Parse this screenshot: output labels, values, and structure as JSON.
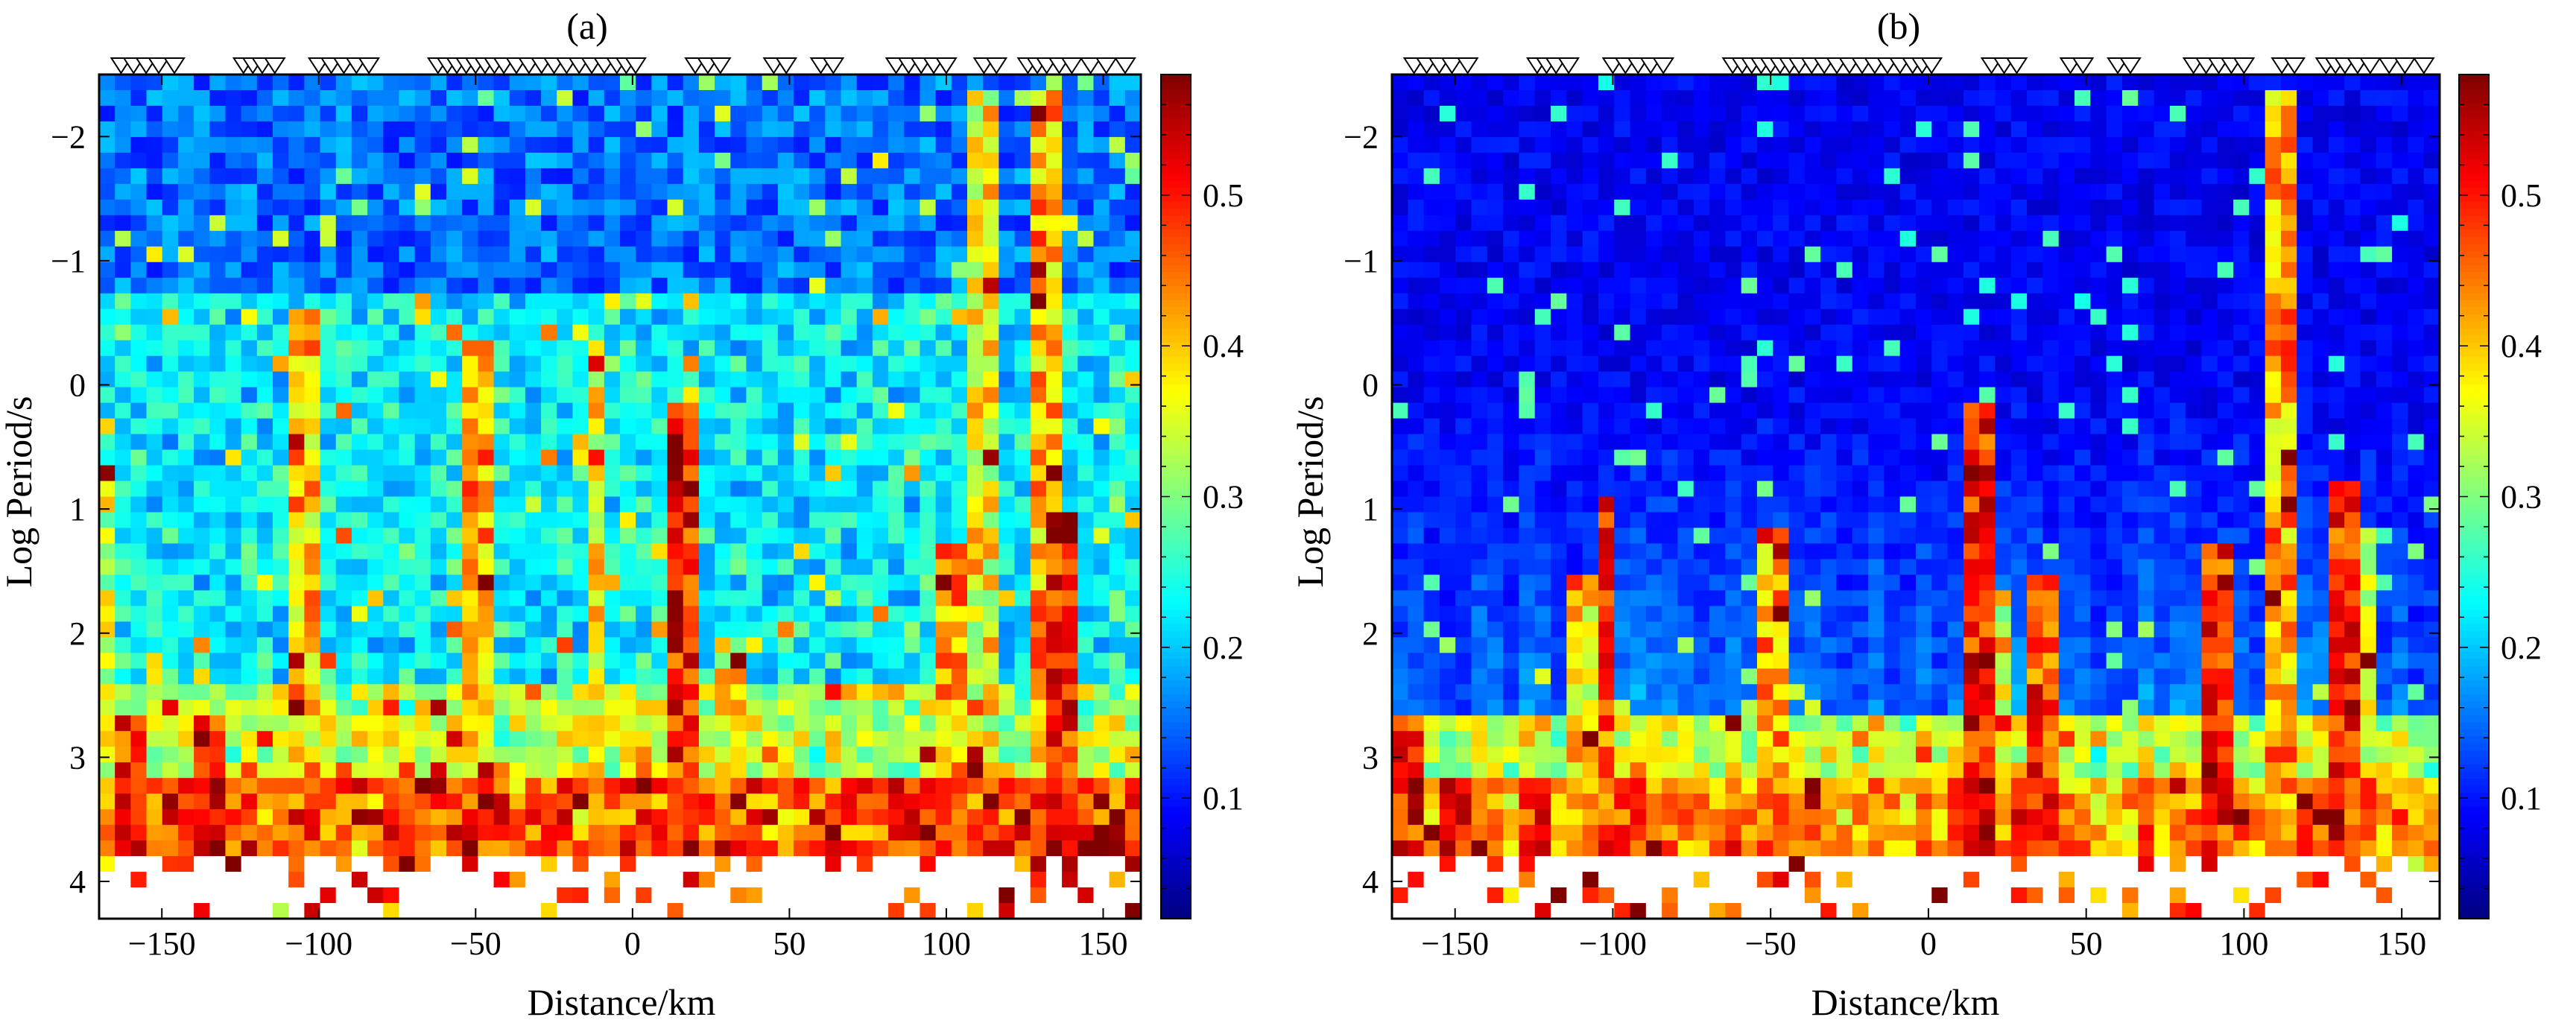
{
  "figure": {
    "panels": [
      {
        "label": "(a)",
        "seed": 17
      },
      {
        "label": "(b)",
        "seed": 91
      }
    ]
  },
  "chart_data": [
    {
      "type": "heatmap",
      "panel": "(a)",
      "xlabel": "Distance/km",
      "ylabel": "Log Period/s",
      "xlim": [
        -170,
        162
      ],
      "ylim": [
        -2.5,
        4.3
      ],
      "xticks": [
        -150,
        -100,
        -50,
        0,
        50,
        100,
        150
      ],
      "yticks": [
        -2,
        -1,
        0,
        1,
        2,
        3,
        4
      ],
      "colorbar": {
        "range": [
          0.02,
          0.58
        ],
        "ticks": [
          0.1,
          0.2,
          0.3,
          0.4,
          0.5
        ],
        "colormap": "jet"
      },
      "stations_km": [
        -163,
        -159,
        -155,
        -151,
        -146,
        -124,
        -121,
        -118,
        -114,
        -100,
        -96,
        -92,
        -88,
        -84,
        -62,
        -59,
        -56,
        -53,
        -50,
        -47,
        -44,
        -41,
        -37,
        -33,
        -29,
        -25,
        -21,
        -17,
        -13,
        -9,
        -5,
        -2,
        1,
        20,
        24,
        28,
        45,
        49,
        60,
        64,
        84,
        88,
        92,
        96,
        100,
        112,
        116,
        126,
        129,
        132,
        136,
        140,
        146,
        151,
        157
      ],
      "hot_columns": [
        {
          "x": -168,
          "from": 0.7,
          "level": 0.42
        },
        {
          "x": -158,
          "from": 2.7,
          "level": 0.55
        },
        {
          "x": -135,
          "from": 2.7,
          "level": 0.58
        },
        {
          "x": -103,
          "from": -0.6,
          "level": 0.48
        },
        {
          "x": -48,
          "from": -0.3,
          "level": 0.5
        },
        {
          "x": -12,
          "from": -0.3,
          "level": 0.45
        },
        {
          "x": 16,
          "from": 0.2,
          "level": 0.58
        },
        {
          "x": 30,
          "from": 2.0,
          "level": 0.45
        },
        {
          "x": 100,
          "from": 1.3,
          "level": 0.5
        },
        {
          "x": 112,
          "from": -2.4,
          "level": 0.45
        },
        {
          "x": 132,
          "from": -2.4,
          "level": 0.5
        },
        {
          "x": 136,
          "from": 1.0,
          "level": 0.58
        }
      ]
    },
    {
      "type": "heatmap",
      "panel": "(b)",
      "xlabel": "Distance/km",
      "ylabel": "Log Period/s",
      "xlim": [
        -170,
        162
      ],
      "ylim": [
        -2.5,
        4.3
      ],
      "xticks": [
        -150,
        -100,
        -50,
        0,
        50,
        100,
        150
      ],
      "yticks": [
        -2,
        -1,
        0,
        1,
        2,
        3,
        4
      ],
      "colorbar": {
        "range": [
          0.02,
          0.58
        ],
        "ticks": [
          0.1,
          0.2,
          0.3,
          0.4,
          0.5
        ],
        "colormap": "jet"
      },
      "stations_km": [
        -163,
        -159,
        -155,
        -151,
        -146,
        -124,
        -121,
        -118,
        -114,
        -100,
        -96,
        -92,
        -88,
        -84,
        -62,
        -59,
        -56,
        -53,
        -50,
        -47,
        -44,
        -41,
        -37,
        -33,
        -29,
        -25,
        -21,
        -17,
        -13,
        -9,
        -5,
        -2,
        1,
        20,
        24,
        28,
        45,
        49,
        60,
        64,
        84,
        88,
        92,
        96,
        100,
        112,
        116,
        126,
        129,
        132,
        136,
        140,
        146,
        151,
        157
      ],
      "hot_columns": [
        {
          "x": -165,
          "from": 2.6,
          "level": 0.58
        },
        {
          "x": -150,
          "from": 3.2,
          "level": 0.58
        },
        {
          "x": -125,
          "from": 3.2,
          "level": 0.58
        },
        {
          "x": -108,
          "from": 1.5,
          "level": 0.45
        },
        {
          "x": -102,
          "from": 0.9,
          "level": 0.55
        },
        {
          "x": -50,
          "from": 1.1,
          "level": 0.5
        },
        {
          "x": 15,
          "from": 0.2,
          "level": 0.58
        },
        {
          "x": 22,
          "from": 1.6,
          "level": 0.45
        },
        {
          "x": 37,
          "from": 1.5,
          "level": 0.55
        },
        {
          "x": 93,
          "from": 1.3,
          "level": 0.58
        },
        {
          "x": 110,
          "from": -2.4,
          "level": 0.5
        },
        {
          "x": 133,
          "from": 0.8,
          "level": 0.58
        },
        {
          "x": 138,
          "from": 1.2,
          "level": 0.45
        }
      ]
    }
  ]
}
